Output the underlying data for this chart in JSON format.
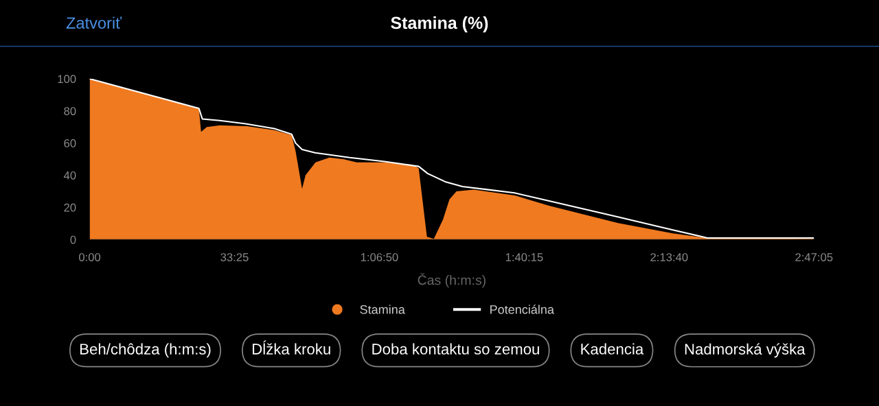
{
  "chart_data": {
    "type": "area",
    "title": "Stamina (%)",
    "xlabel": "Čas (h:m:s)",
    "annotations": [
      "Zatvoriť",
      "Beh/chôdza (h:m:s)",
      "Dĺžka kroku",
      "Doba kontaktu so zemou",
      "Kadencia",
      "Nadmorská výška"
    ],
    "xlim": [
      0,
      167.083
    ],
    "ylim": [
      0,
      100
    ],
    "xticks": [
      {
        "value": 0,
        "label": "0:00"
      },
      {
        "value": 33.417,
        "label": "33:25"
      },
      {
        "value": 66.833,
        "label": "1:06:50"
      },
      {
        "value": 100.25,
        "label": "1:40:15"
      },
      {
        "value": 133.667,
        "label": "2:13:40"
      },
      {
        "value": 167.083,
        "label": "2:47:05"
      }
    ],
    "yticks": [
      0,
      20,
      40,
      60,
      80,
      100
    ],
    "grid": false,
    "legend": "bottom",
    "series": [
      {
        "name": "Stamina",
        "color": "#f07a20",
        "x": [
          0,
          25.2,
          25.7,
          27,
          30,
          36.3,
          42.6,
          46.6,
          47.5,
          49,
          49.8,
          52.1,
          55.3,
          58.5,
          61.6,
          68,
          74.3,
          75.9,
          77.8,
          79.4,
          81.5,
          83,
          84.6,
          88.6,
          98.1,
          106,
          121.9,
          134.5,
          142.5,
          167
        ],
        "values": [
          100,
          81.6,
          67,
          70,
          71,
          70.5,
          68,
          65,
          55,
          31.6,
          40,
          48,
          51,
          50,
          48,
          48,
          46.6,
          44.4,
          1.7,
          0.4,
          12.4,
          25,
          30,
          31,
          27.4,
          21,
          10.3,
          3.8,
          0.9,
          0.4
        ]
      },
      {
        "name": "Potenciálna",
        "type": "line",
        "color": "#ffffff",
        "x": [
          0,
          25.2,
          26,
          30,
          36,
          42.6,
          46.6,
          47.5,
          49,
          52,
          60,
          68,
          75.9,
          78,
          82,
          86,
          92,
          98,
          106,
          122,
          134.5,
          142.5,
          167
        ],
        "values": [
          100,
          81.6,
          75,
          74,
          72,
          69,
          65.5,
          60,
          56,
          54,
          51,
          48.5,
          45.5,
          41,
          36,
          33,
          31,
          29,
          24,
          14,
          6,
          1,
          1
        ]
      }
    ]
  }
}
